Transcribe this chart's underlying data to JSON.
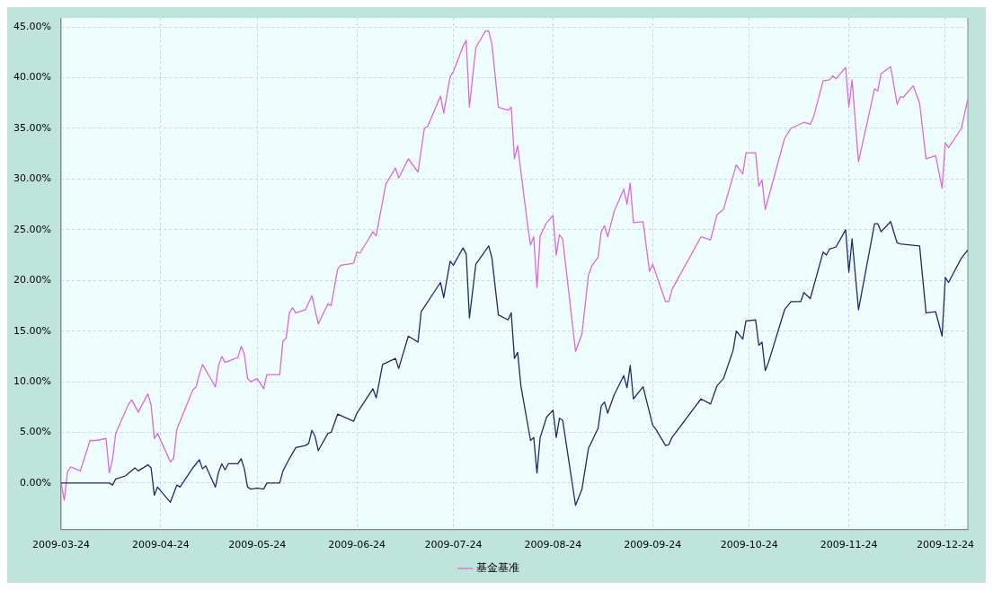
{
  "chart_data": {
    "type": "line",
    "legend": "bottom",
    "grid": true,
    "marker": "none",
    "line_style": "solid",
    "xlim": [
      "2009-03-24",
      "2009-12-31"
    ],
    "xticks": [
      "2009-03-24",
      "2009-04-24",
      "2009-05-24",
      "2009-06-24",
      "2009-07-24",
      "2009-08-24",
      "2009-09-24",
      "2009-10-24",
      "2009-11-24",
      "2009-12-24"
    ],
    "ylim": [
      -4.6,
      45.9
    ],
    "yticks": [
      {
        "value": 0,
        "label": "0.00%"
      },
      {
        "value": 5,
        "label": "5.00%"
      },
      {
        "value": 10,
        "label": "10.00%"
      },
      {
        "value": 15,
        "label": "15.00%"
      },
      {
        "value": 20,
        "label": "20.00%"
      },
      {
        "value": 25,
        "label": "25.00%"
      },
      {
        "value": 30,
        "label": "30.00%"
      },
      {
        "value": 35,
        "label": "35.00%"
      },
      {
        "value": 40,
        "label": "40.00%"
      },
      {
        "value": 45,
        "label": "45.00%"
      }
    ],
    "series": [
      {
        "color": "#1f2a6e",
        "x": [
          "2009-03-24",
          "2009-04-08",
          "2009-04-09",
          "2009-04-10",
          "2009-04-13",
          "2009-04-16",
          "2009-04-17",
          "2009-04-20",
          "2009-04-21",
          "2009-04-22",
          "2009-04-23",
          "2009-04-27",
          "2009-04-29",
          "2009-04-30",
          "2009-05-04",
          "2009-05-06",
          "2009-05-07",
          "2009-05-08",
          "2009-05-11",
          "2009-05-12",
          "2009-05-13",
          "2009-05-14",
          "2009-05-15",
          "2009-05-18",
          "2009-05-19",
          "2009-05-20",
          "2009-05-21",
          "2009-05-22",
          "2009-05-24",
          "2009-05-26",
          "2009-05-27",
          "2009-05-31",
          "2009-06-01",
          "2009-06-03",
          "2009-06-05",
          "2009-06-08",
          "2009-06-09",
          "2009-06-10",
          "2009-06-11",
          "2009-06-12",
          "2009-06-15",
          "2009-06-16",
          "2009-06-18",
          "2009-06-23",
          "2009-06-24",
          "2009-06-29",
          "2009-06-30",
          "2009-07-02",
          "2009-07-06",
          "2009-07-07",
          "2009-07-10",
          "2009-07-13",
          "2009-07-14",
          "2009-07-20",
          "2009-07-21",
          "2009-07-23",
          "2009-07-24",
          "2009-07-27",
          "2009-07-28",
          "2009-07-29",
          "2009-07-31",
          "2009-08-04",
          "2009-08-05",
          "2009-08-07",
          "2009-08-10",
          "2009-08-11",
          "2009-08-12",
          "2009-08-13",
          "2009-08-14",
          "2009-08-17",
          "2009-08-18",
          "2009-08-19",
          "2009-08-20",
          "2009-08-22",
          "2009-08-24",
          "2009-08-25",
          "2009-08-26",
          "2009-08-27",
          "2009-08-31",
          "2009-09-02",
          "2009-09-04",
          "2009-09-07",
          "2009-09-08",
          "2009-09-09",
          "2009-09-10",
          "2009-09-12",
          "2009-09-15",
          "2009-09-16",
          "2009-09-17",
          "2009-09-18",
          "2009-09-21",
          "2009-09-24",
          "2009-09-25",
          "2009-09-28",
          "2009-09-29",
          "2009-09-30",
          "2009-10-09",
          "2009-10-12",
          "2009-10-14",
          "2009-10-16",
          "2009-10-19",
          "2009-10-20",
          "2009-10-22",
          "2009-10-23",
          "2009-10-26",
          "2009-10-27",
          "2009-10-28",
          "2009-10-29",
          "2009-10-30",
          "2009-11-04",
          "2009-11-06",
          "2009-11-09",
          "2009-11-10",
          "2009-11-12",
          "2009-11-16",
          "2009-11-17",
          "2009-11-18",
          "2009-11-20",
          "2009-11-23",
          "2009-11-24",
          "2009-11-25",
          "2009-11-27",
          "2009-12-02",
          "2009-12-03",
          "2009-12-04",
          "2009-12-07",
          "2009-12-09",
          "2009-12-10",
          "2009-12-16",
          "2009-12-18",
          "2009-12-21",
          "2009-12-23",
          "2009-12-24",
          "2009-12-25",
          "2009-12-29",
          "2009-12-31"
        ],
        "values": [
          0,
          0,
          -0.2,
          0.4,
          0.7,
          1.5,
          1.2,
          1.8,
          1.5,
          -1.2,
          -0.4,
          -1.9,
          -0.2,
          -0.4,
          1.5,
          2.3,
          1.4,
          1.7,
          -0.4,
          1.1,
          1.9,
          1.3,
          1.9,
          1.9,
          2.4,
          1.4,
          -0.4,
          -0.6,
          -0.5,
          -0.6,
          0,
          0,
          1.2,
          2.4,
          3.5,
          3.7,
          3.9,
          5.2,
          4.6,
          3.2,
          4.9,
          5.0,
          6.8,
          6.1,
          6.9,
          9.3,
          8.4,
          11.7,
          12.3,
          11.3,
          14.5,
          13.9,
          16.9,
          19.8,
          18.3,
          21.9,
          21.5,
          23.2,
          22.6,
          16.3,
          21.6,
          23.4,
          22.2,
          16.6,
          16.1,
          16.8,
          12.3,
          12.9,
          9.6,
          4.2,
          4.5,
          1.0,
          4.5,
          6.5,
          7.2,
          4.5,
          6.4,
          6.2,
          -2.2,
          -0.6,
          3.4,
          5.4,
          7.6,
          8.0,
          6.9,
          8.7,
          10.6,
          9.4,
          11.6,
          8.3,
          9.5,
          5.7,
          5.3,
          3.7,
          3.8,
          4.5,
          8.3,
          7.8,
          9.6,
          10.3,
          13.1,
          15.0,
          14.2,
          16.0,
          16.1,
          13.6,
          13.9,
          11.1,
          11.9,
          17.1,
          17.9,
          17.9,
          18.8,
          18.2,
          22.8,
          22.5,
          23.1,
          23.3,
          25.0,
          20.8,
          24.1,
          17.1,
          25.6,
          25.6,
          24.8,
          25.8,
          23.7,
          23.6,
          23.4,
          16.8,
          16.9,
          14.5,
          20.3,
          19.8,
          22.2,
          23.0
        ]
      },
      {
        "name": "基金基准",
        "color": "#dd66e6",
        "x": [
          "2009-03-24",
          "2009-03-25",
          "2009-03-26",
          "2009-03-27",
          "2009-03-30",
          "2009-04-02",
          "2009-04-04",
          "2009-04-07",
          "2009-04-08",
          "2009-04-09",
          "2009-04-10",
          "2009-04-14",
          "2009-04-15",
          "2009-04-17",
          "2009-04-20",
          "2009-04-21",
          "2009-04-22",
          "2009-04-23",
          "2009-04-27",
          "2009-04-28",
          "2009-04-29",
          "2009-05-04",
          "2009-05-05",
          "2009-05-06",
          "2009-05-07",
          "2009-05-11",
          "2009-05-12",
          "2009-05-13",
          "2009-05-14",
          "2009-05-18",
          "2009-05-19",
          "2009-05-20",
          "2009-05-21",
          "2009-05-22",
          "2009-05-24",
          "2009-05-26",
          "2009-05-27",
          "2009-05-31",
          "2009-06-01",
          "2009-06-02",
          "2009-06-03",
          "2009-06-04",
          "2009-06-05",
          "2009-06-08",
          "2009-06-10",
          "2009-06-12",
          "2009-06-15",
          "2009-06-16",
          "2009-06-18",
          "2009-06-19",
          "2009-06-23",
          "2009-06-24",
          "2009-06-25",
          "2009-06-29",
          "2009-06-30",
          "2009-07-03",
          "2009-07-06",
          "2009-07-07",
          "2009-07-10",
          "2009-07-13",
          "2009-07-15",
          "2009-07-16",
          "2009-07-20",
          "2009-07-21",
          "2009-07-23",
          "2009-07-24",
          "2009-07-27",
          "2009-07-28",
          "2009-07-29",
          "2009-07-31",
          "2009-08-03",
          "2009-08-04",
          "2009-08-05",
          "2009-08-07",
          "2009-08-10",
          "2009-08-11",
          "2009-08-12",
          "2009-08-13",
          "2009-08-16",
          "2009-08-17",
          "2009-08-18",
          "2009-08-19",
          "2009-08-20",
          "2009-08-22",
          "2009-08-24",
          "2009-08-25",
          "2009-08-26",
          "2009-08-27",
          "2009-08-31",
          "2009-09-02",
          "2009-09-04",
          "2009-09-05",
          "2009-09-07",
          "2009-09-08",
          "2009-09-09",
          "2009-09-10",
          "2009-09-12",
          "2009-09-15",
          "2009-09-16",
          "2009-09-17",
          "2009-09-18",
          "2009-09-21",
          "2009-09-23",
          "2009-09-24",
          "2009-09-28",
          "2009-09-29",
          "2009-09-30",
          "2009-10-09",
          "2009-10-12",
          "2009-10-14",
          "2009-10-16",
          "2009-10-20",
          "2009-10-22",
          "2009-10-23",
          "2009-10-26",
          "2009-10-27",
          "2009-10-28",
          "2009-10-29",
          "2009-11-04",
          "2009-11-06",
          "2009-11-10",
          "2009-11-12",
          "2009-11-13",
          "2009-11-16",
          "2009-11-18",
          "2009-11-19",
          "2009-11-20",
          "2009-11-23",
          "2009-11-24",
          "2009-11-25",
          "2009-11-27",
          "2009-12-02",
          "2009-12-03",
          "2009-12-04",
          "2009-12-07",
          "2009-12-09",
          "2009-12-10",
          "2009-12-11",
          "2009-12-14",
          "2009-12-16",
          "2009-12-18",
          "2009-12-21",
          "2009-12-23",
          "2009-12-24",
          "2009-12-25",
          "2009-12-29",
          "2009-12-31"
        ],
        "values": [
          0,
          -1.7,
          1.1,
          1.6,
          1.2,
          4.2,
          4.2,
          4.4,
          1.0,
          2.3,
          4.9,
          7.8,
          8.2,
          7.0,
          8.8,
          7.7,
          4.4,
          4.9,
          2.1,
          2.4,
          5.3,
          9.2,
          9.5,
          10.7,
          11.7,
          9.5,
          11.6,
          12.5,
          11.9,
          12.4,
          13.5,
          12.7,
          10.3,
          10.0,
          10.3,
          9.3,
          10.7,
          10.7,
          14.0,
          14.3,
          16.8,
          17.3,
          16.8,
          17.1,
          18.5,
          15.7,
          17.7,
          17.5,
          21.1,
          21.5,
          21.7,
          22.8,
          22.7,
          24.8,
          24.4,
          29.5,
          31.1,
          30.1,
          32.0,
          30.7,
          35.0,
          35.2,
          38.2,
          36.5,
          40.1,
          40.6,
          43.1,
          43.7,
          37.1,
          43.0,
          44.6,
          44.6,
          43.3,
          37.1,
          36.8,
          37.1,
          32.0,
          33.3,
          25.7,
          23.5,
          24.3,
          19.3,
          24.4,
          25.7,
          26.4,
          22.5,
          24.5,
          24.1,
          13.0,
          14.7,
          20.5,
          21.4,
          22.3,
          24.8,
          25.4,
          24.3,
          26.8,
          29.0,
          27.5,
          29.6,
          25.7,
          25.8,
          20.9,
          21.6,
          17.9,
          17.9,
          19.1,
          24.3,
          24.0,
          26.5,
          27.0,
          31.4,
          30.5,
          32.6,
          32.6,
          29.3,
          29.9,
          27.0,
          34.0,
          35.0,
          35.6,
          35.4,
          36.1,
          39.7,
          39.8,
          40.2,
          39.9,
          41.0,
          37.1,
          39.8,
          31.7,
          38.9,
          38.7,
          40.4,
          41.1,
          37.4,
          38.1,
          38.1,
          39.2,
          37.5,
          32.0,
          32.3,
          29.1,
          33.6,
          33.1,
          35.0,
          37.9
        ]
      }
    ]
  }
}
